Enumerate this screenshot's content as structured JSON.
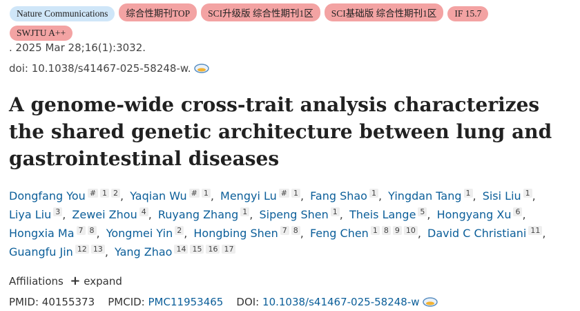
{
  "badges": [
    "Nature Communications",
    "综合性期刊TOP",
    "SCI升级版 综合性期刊1区",
    "SCI基础版 综合性期刊1区",
    "IF 15.7",
    "SWJTU A++"
  ],
  "citation": ". 2025 Mar 28;16(1):3032.",
  "doi_line": "doi: 10.1038/s41467-025-58248-w.",
  "title": "A genome-wide cross-trait analysis characterizes the shared genetic architecture between lung and gastrointestinal diseases",
  "author_separator": ",",
  "authors": [
    {
      "name": "Dongfang You",
      "sup": [
        "#",
        "1",
        "2"
      ]
    },
    {
      "name": "Yaqian Wu",
      "sup": [
        "#",
        "1"
      ]
    },
    {
      "name": "Mengyi Lu",
      "sup": [
        "#",
        "1"
      ]
    },
    {
      "name": "Fang Shao",
      "sup": [
        "1"
      ]
    },
    {
      "name": "Yingdan Tang",
      "sup": [
        "1"
      ]
    },
    {
      "name": "Sisi Liu",
      "sup": [
        "1"
      ]
    },
    {
      "name": "Liya Liu",
      "sup": [
        "3"
      ]
    },
    {
      "name": "Zewei Zhou",
      "sup": [
        "4"
      ]
    },
    {
      "name": "Ruyang Zhang",
      "sup": [
        "1"
      ]
    },
    {
      "name": "Sipeng Shen",
      "sup": [
        "1"
      ]
    },
    {
      "name": "Theis Lange",
      "sup": [
        "5"
      ]
    },
    {
      "name": "Hongyang Xu",
      "sup": [
        "6"
      ]
    },
    {
      "name": "Hongxia Ma",
      "sup": [
        "7",
        "8"
      ]
    },
    {
      "name": "Yongmei Yin",
      "sup": [
        "2"
      ]
    },
    {
      "name": "Hongbing Shen",
      "sup": [
        "7",
        "8"
      ]
    },
    {
      "name": "Feng Chen",
      "sup": [
        "1",
        "8",
        "9",
        "10"
      ]
    },
    {
      "name": "David C Christiani",
      "sup": [
        "11"
      ]
    },
    {
      "name": "Guangfu Jin",
      "sup": [
        "12",
        "13"
      ]
    },
    {
      "name": "Yang Zhao",
      "sup": [
        "14",
        "15",
        "16",
        "17"
      ]
    }
  ],
  "affiliations": {
    "label": "Affiliations",
    "expand": "expand"
  },
  "ids": {
    "pmid_label": "PMID:",
    "pmid": "40155373",
    "pmcid_label": "PMCID:",
    "pmcid": "PMC11953465",
    "doi_label": "DOI:",
    "doi": "10.1038/s41467-025-58248-w"
  }
}
